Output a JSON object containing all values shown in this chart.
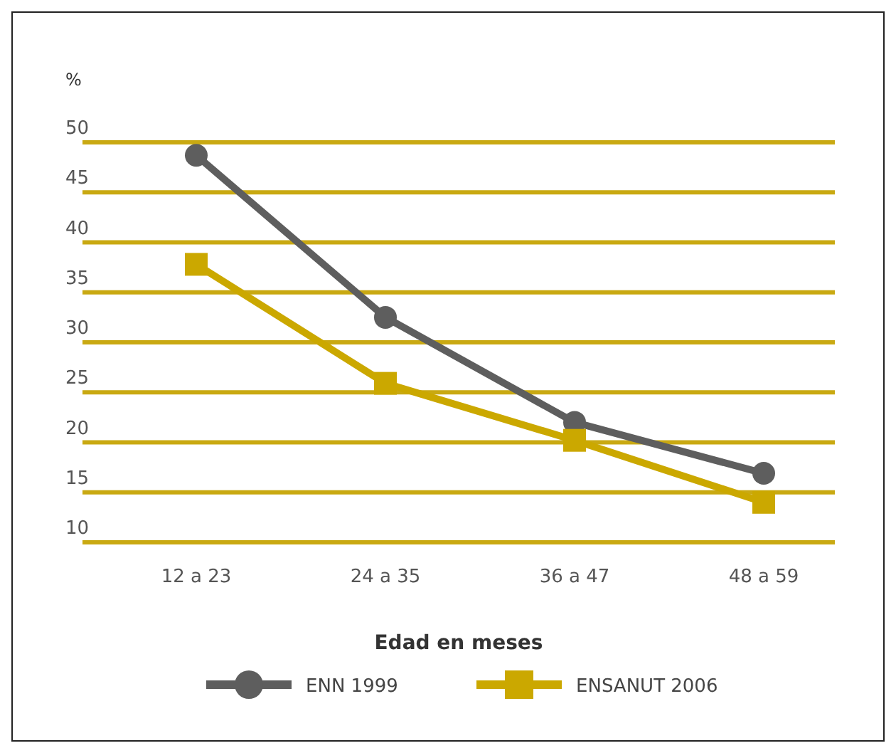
{
  "chart_data": {
    "type": "line",
    "ylabel": "%",
    "xlabel": "Edad en meses",
    "categories": [
      "12 a 23",
      "24 a 35",
      "36 a 47",
      "48 a 59"
    ],
    "ylim": [
      10,
      50
    ],
    "yticks": [
      10,
      15,
      20,
      25,
      30,
      35,
      40,
      45,
      50
    ],
    "grid": "y",
    "legend": "bottom",
    "series": [
      {
        "name": "ENN 1999",
        "color": "#5e5e5e",
        "marker": "circle",
        "values": [
          48.7,
          32.5,
          22.0,
          16.9
        ]
      },
      {
        "name": "ENSANUT 2006",
        "color": "#cba800",
        "marker": "square",
        "values": [
          37.8,
          25.9,
          20.2,
          14.0
        ]
      }
    ]
  }
}
